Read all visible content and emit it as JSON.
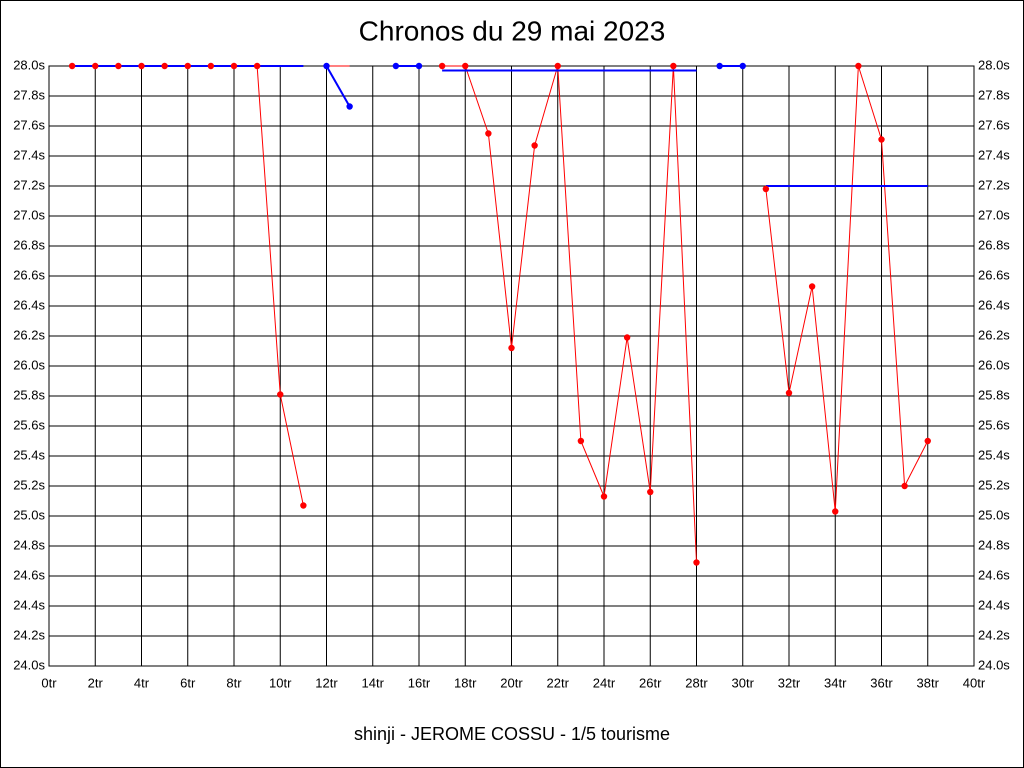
{
  "chart_data": {
    "type": "line",
    "title": "Chronos du 29 mai 2023",
    "subtitle": "shinji - JEROME COSSU - 1/5 tourisme",
    "xlim": [
      0,
      40
    ],
    "xticks": [
      {
        "value": 0,
        "label": "0tr"
      },
      {
        "value": 2,
        "label": "2tr"
      },
      {
        "value": 4,
        "label": "4tr"
      },
      {
        "value": 6,
        "label": "6tr"
      },
      {
        "value": 8,
        "label": "8tr"
      },
      {
        "value": 10,
        "label": "10tr"
      },
      {
        "value": 12,
        "label": "12tr"
      },
      {
        "value": 14,
        "label": "14tr"
      },
      {
        "value": 16,
        "label": "16tr"
      },
      {
        "value": 18,
        "label": "18tr"
      },
      {
        "value": 20,
        "label": "20tr"
      },
      {
        "value": 22,
        "label": "22tr"
      },
      {
        "value": 24,
        "label": "24tr"
      },
      {
        "value": 26,
        "label": "26tr"
      },
      {
        "value": 28,
        "label": "28tr"
      },
      {
        "value": 30,
        "label": "30tr"
      },
      {
        "value": 32,
        "label": "32tr"
      },
      {
        "value": 34,
        "label": "34tr"
      },
      {
        "value": 36,
        "label": "36tr"
      },
      {
        "value": 38,
        "label": "38tr"
      },
      {
        "value": 40,
        "label": "40tr"
      }
    ],
    "ylim": [
      24,
      28
    ],
    "yticks": [
      {
        "value": 24,
        "label": "24.0s"
      },
      {
        "value": 24.2,
        "label": "24.2s"
      },
      {
        "value": 24.4,
        "label": "24.4s"
      },
      {
        "value": 24.6,
        "label": "24.6s"
      },
      {
        "value": 24.8,
        "label": "24.8s"
      },
      {
        "value": 25,
        "label": "25.0s"
      },
      {
        "value": 25.2,
        "label": "25.2s"
      },
      {
        "value": 25.4,
        "label": "25.4s"
      },
      {
        "value": 25.6,
        "label": "25.6s"
      },
      {
        "value": 25.8,
        "label": "25.8s"
      },
      {
        "value": 26,
        "label": "26.0s"
      },
      {
        "value": 26.2,
        "label": "26.2s"
      },
      {
        "value": 26.4,
        "label": "26.4s"
      },
      {
        "value": 26.6,
        "label": "26.6s"
      },
      {
        "value": 26.8,
        "label": "26.8s"
      },
      {
        "value": 27,
        "label": "27.0s"
      },
      {
        "value": 27.2,
        "label": "27.2s"
      },
      {
        "value": 27.4,
        "label": "27.4s"
      },
      {
        "value": 27.6,
        "label": "27.6s"
      },
      {
        "value": 27.8,
        "label": "27.8s"
      },
      {
        "value": 28,
        "label": "28.0s"
      }
    ],
    "grid": true,
    "series": [
      {
        "color": "#ff0000",
        "markers": true,
        "x": [
          1,
          2,
          3,
          4,
          5,
          6,
          7,
          8,
          9,
          10,
          11
        ],
        "values": [
          28,
          28,
          28,
          28,
          28,
          28,
          28,
          28,
          28,
          25.81,
          25.07
        ]
      },
      {
        "color": "#ff0000",
        "markers": false,
        "x": [
          12,
          13
        ],
        "values": [
          28,
          28
        ]
      },
      {
        "color": "#ff0000",
        "markers": false,
        "x": [
          15,
          16
        ],
        "values": [
          28,
          28
        ]
      },
      {
        "color": "#ff0000",
        "markers": true,
        "x": [
          17,
          18,
          19,
          20,
          21,
          22,
          23,
          24,
          25,
          26,
          27,
          28
        ],
        "values": [
          28,
          28,
          27.55,
          26.12,
          27.47,
          28,
          25.5,
          25.13,
          26.19,
          25.16,
          28,
          24.69
        ]
      },
      {
        "color": "#ff0000",
        "markers": false,
        "x": [
          29,
          30
        ],
        "values": [
          28,
          28
        ]
      },
      {
        "color": "#ff0000",
        "markers": true,
        "x": [
          31,
          32,
          33,
          34,
          35,
          36,
          37,
          38
        ],
        "values": [
          27.18,
          25.82,
          26.53,
          25.03,
          28,
          27.51,
          25.2,
          25.5
        ]
      },
      {
        "color": "#0000ff",
        "markers": false,
        "x": [
          1,
          2,
          3,
          4,
          5,
          6,
          7,
          8,
          9,
          10,
          11
        ],
        "values": [
          28,
          28,
          28,
          28,
          28,
          28,
          28,
          28,
          28,
          28,
          28
        ]
      },
      {
        "color": "#0000ff",
        "markers": true,
        "x": [
          12,
          13
        ],
        "values": [
          28,
          27.73
        ]
      },
      {
        "color": "#0000ff",
        "markers": true,
        "x": [
          15,
          16
        ],
        "values": [
          28,
          28
        ]
      },
      {
        "color": "#0000ff",
        "markers": false,
        "x": [
          17,
          18,
          19,
          20,
          21,
          22,
          23,
          24,
          25,
          26,
          27,
          28
        ],
        "values": [
          27.97,
          27.97,
          27.97,
          27.97,
          27.97,
          27.97,
          27.97,
          27.97,
          27.97,
          27.97,
          27.97,
          27.97
        ]
      },
      {
        "color": "#0000ff",
        "markers": true,
        "x": [
          29,
          30
        ],
        "values": [
          28,
          28
        ]
      },
      {
        "color": "#0000ff",
        "markers": false,
        "x": [
          31,
          32,
          33,
          34,
          35,
          36,
          37,
          38
        ],
        "values": [
          27.2,
          27.2,
          27.2,
          27.2,
          27.2,
          27.2,
          27.2,
          27.2
        ]
      }
    ]
  }
}
